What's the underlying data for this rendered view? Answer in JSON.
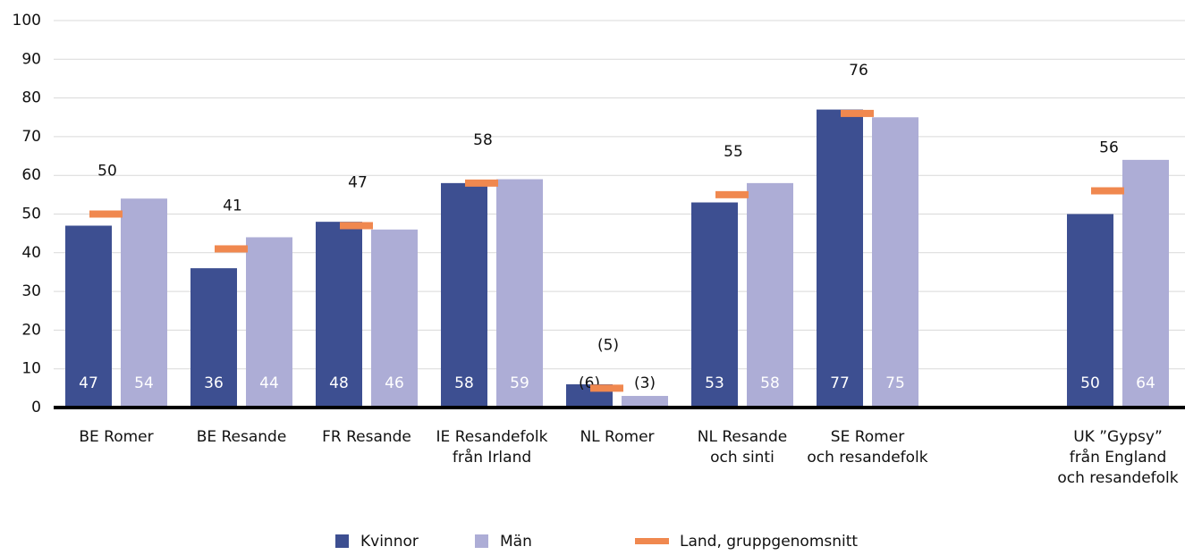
{
  "chart_data": {
    "type": "bar",
    "categories": [
      [
        "BE Romer"
      ],
      [
        "BE Resande"
      ],
      [
        "FR Resande"
      ],
      [
        "IE Resandefolk",
        "från Irland"
      ],
      [
        "NL Romer"
      ],
      [
        "NL Resande",
        "och sinti"
      ],
      [
        "SE Romer",
        "och resandefolk"
      ],
      null,
      [
        "UK ”Gypsy”",
        "från England",
        "och resandefolk"
      ]
    ],
    "series": [
      {
        "name": "Kvinnor",
        "color": "#3d4f91",
        "values": [
          47,
          36,
          48,
          58,
          6,
          53,
          77,
          null,
          50
        ],
        "value_labels": [
          "47",
          "36",
          "48",
          "58",
          "(6)",
          "53",
          "77",
          null,
          "50"
        ]
      },
      {
        "name": "Män",
        "color": "#adadd6",
        "values": [
          54,
          44,
          46,
          59,
          3,
          58,
          75,
          null,
          64
        ],
        "value_labels": [
          "54",
          "44",
          "46",
          "59",
          "(3)",
          "58",
          "75",
          null,
          "64"
        ]
      },
      {
        "name": "Land, gruppgenomsnitt",
        "color": "#f0884f",
        "type": "marker",
        "values": [
          50,
          41,
          47,
          58,
          5,
          55,
          76,
          null,
          56
        ],
        "value_labels": [
          "50",
          "41",
          "47",
          "58",
          "(5)",
          "55",
          "76",
          null,
          "56"
        ]
      }
    ],
    "ylim": [
      0,
      100
    ],
    "yticks": [
      0,
      10,
      20,
      30,
      40,
      50,
      60,
      70,
      80,
      90,
      100
    ],
    "grid": true,
    "legend": "bottom"
  }
}
